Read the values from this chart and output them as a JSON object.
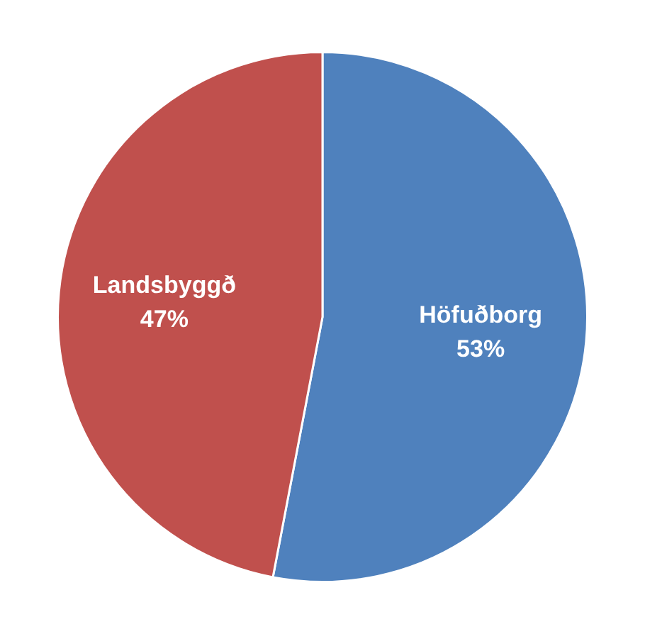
{
  "chart_data": {
    "type": "pie",
    "categories": [
      "Höfuðborg",
      "Landsbyggð"
    ],
    "values": [
      53,
      47
    ],
    "colors": [
      "#4f81bd",
      "#c0504d"
    ],
    "value_labels": [
      "53%",
      "47%"
    ],
    "legend": false
  }
}
